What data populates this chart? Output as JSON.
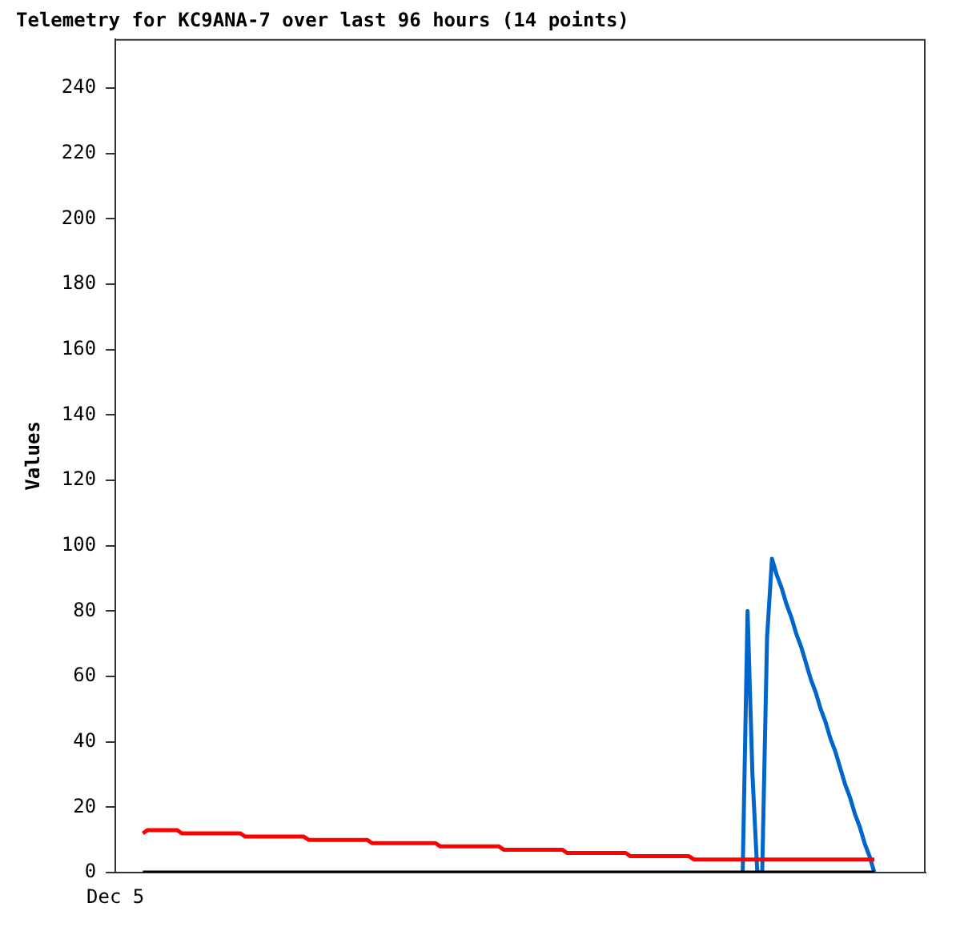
{
  "chart_data": {
    "type": "line",
    "title": "Telemetry for KC9ANA-7 over last 96 hours (14 points)",
    "ylabel": "Values",
    "annotations": [
      "Dec 5"
    ],
    "tick_labels": "y",
    "ylim": [
      0,
      255
    ],
    "yticks": [
      0,
      20,
      40,
      60,
      80,
      100,
      120,
      140,
      160,
      180,
      200,
      220,
      240
    ],
    "grid": false,
    "legend": false,
    "marker": "none",
    "line_style": "solid",
    "categories": [
      null,
      null,
      null,
      null,
      null,
      null,
      null,
      null,
      null,
      null,
      null,
      null,
      null,
      null,
      null,
      null,
      null,
      null,
      null,
      null,
      null,
      null,
      null,
      null,
      null,
      null,
      null,
      null,
      null,
      null,
      null,
      null,
      null,
      null,
      null,
      null,
      null,
      null,
      null,
      null,
      null,
      null,
      null,
      null,
      null,
      null,
      null,
      null,
      null,
      null,
      null,
      null,
      null,
      null,
      null,
      null,
      null,
      null,
      null,
      null,
      null,
      null,
      null,
      null,
      null,
      null,
      null,
      null,
      null,
      null,
      null,
      null,
      null,
      null,
      null,
      null,
      null,
      null,
      null,
      null,
      null,
      null,
      null,
      null,
      null,
      null,
      null,
      null,
      null,
      null,
      null,
      null,
      null,
      null,
      null,
      null,
      null,
      null,
      null,
      null,
      null,
      null,
      null,
      null,
      null,
      null,
      null,
      null,
      null,
      null,
      null,
      null,
      null,
      null,
      null,
      null,
      null,
      null,
      null,
      null,
      null,
      null,
      null,
      null,
      null,
      null,
      null,
      null,
      null,
      null,
      null,
      null,
      null,
      null,
      null,
      null,
      null,
      null,
      null,
      null,
      null,
      null,
      null,
      null,
      null,
      null,
      null,
      null,
      null,
      null,
      null
    ],
    "series": [
      {
        "color": "#ff0000",
        "values": [
          12,
          13,
          13,
          13,
          13,
          13,
          13,
          13,
          12,
          12,
          12,
          12,
          12,
          12,
          12,
          12,
          12,
          12,
          12,
          12,
          12,
          11,
          11,
          11,
          11,
          11,
          11,
          11,
          11,
          11,
          11,
          11,
          11,
          11,
          10,
          10,
          10,
          10,
          10,
          10,
          10,
          10,
          10,
          10,
          10,
          10,
          10,
          9,
          9,
          9,
          9,
          9,
          9,
          9,
          9,
          9,
          9,
          9,
          9,
          9,
          9,
          8,
          8,
          8,
          8,
          8,
          8,
          8,
          8,
          8,
          8,
          8,
          8,
          8,
          7,
          7,
          7,
          7,
          7,
          7,
          7,
          7,
          7,
          7,
          7,
          7,
          7,
          6,
          6,
          6,
          6,
          6,
          6,
          6,
          6,
          6,
          6,
          6,
          6,
          6,
          5,
          5,
          5,
          5,
          5,
          5,
          5,
          5,
          5,
          5,
          5,
          5,
          5,
          4,
          4,
          4,
          4,
          4,
          4,
          4,
          4,
          4,
          4,
          4,
          4,
          4,
          4,
          4,
          4,
          4,
          4,
          4,
          4,
          4,
          4,
          4,
          4,
          4,
          4,
          4,
          4,
          4,
          4,
          4,
          4,
          4,
          4,
          4,
          4,
          4,
          4
        ]
      },
      {
        "color": "#000000",
        "values": [
          0,
          0,
          0,
          0,
          0,
          0,
          0,
          0,
          0,
          0,
          0,
          0,
          0,
          0,
          0,
          0,
          0,
          0,
          0,
          0,
          0,
          0,
          0,
          0,
          0,
          0,
          0,
          0,
          0,
          0,
          0,
          0,
          0,
          0,
          0,
          0,
          0,
          0,
          0,
          0,
          0,
          0,
          0,
          0,
          0,
          0,
          0,
          0,
          0,
          0,
          0,
          0,
          0,
          0,
          0,
          0,
          0,
          0,
          0,
          0,
          0,
          0,
          0,
          0,
          0,
          0,
          0,
          0,
          0,
          0,
          0,
          0,
          0,
          0,
          0,
          0,
          0,
          0,
          0,
          0,
          0,
          0,
          0,
          0,
          0,
          0,
          0,
          0,
          0,
          0,
          0,
          0,
          0,
          0,
          0,
          0,
          0,
          0,
          0,
          0,
          0,
          0,
          0,
          0,
          0,
          0,
          0,
          0,
          0,
          0,
          0,
          0,
          0,
          0,
          0,
          0,
          0,
          0,
          0,
          0,
          0,
          0,
          0,
          0,
          0,
          0,
          0,
          0,
          0,
          0,
          0,
          0,
          0,
          0,
          0,
          0,
          0,
          0,
          0,
          0,
          0,
          0,
          0,
          0,
          0,
          0,
          0,
          0,
          0,
          0,
          0
        ]
      },
      {
        "color": "#0066cc",
        "values": [
          null,
          null,
          null,
          null,
          null,
          null,
          null,
          null,
          null,
          null,
          null,
          null,
          null,
          null,
          null,
          null,
          null,
          null,
          null,
          null,
          null,
          null,
          null,
          null,
          null,
          null,
          null,
          null,
          null,
          null,
          null,
          null,
          null,
          null,
          null,
          null,
          null,
          null,
          null,
          null,
          null,
          null,
          null,
          null,
          null,
          null,
          null,
          null,
          null,
          null,
          null,
          null,
          null,
          null,
          null,
          null,
          null,
          null,
          null,
          null,
          null,
          null,
          null,
          null,
          null,
          null,
          null,
          null,
          null,
          null,
          null,
          null,
          null,
          null,
          null,
          null,
          null,
          null,
          null,
          null,
          null,
          null,
          null,
          null,
          null,
          null,
          null,
          null,
          null,
          null,
          null,
          null,
          null,
          null,
          null,
          null,
          null,
          null,
          null,
          null,
          null,
          null,
          null,
          null,
          null,
          null,
          null,
          null,
          null,
          null,
          null,
          null,
          null,
          null,
          null,
          null,
          null,
          null,
          null,
          null,
          null,
          null,
          null,
          0,
          80,
          30,
          0,
          0,
          72,
          96,
          91,
          87,
          82,
          78,
          73,
          69,
          64,
          59,
          55,
          50,
          46,
          41,
          37,
          32,
          27,
          23,
          18,
          14,
          9,
          5,
          0
        ]
      }
    ]
  }
}
